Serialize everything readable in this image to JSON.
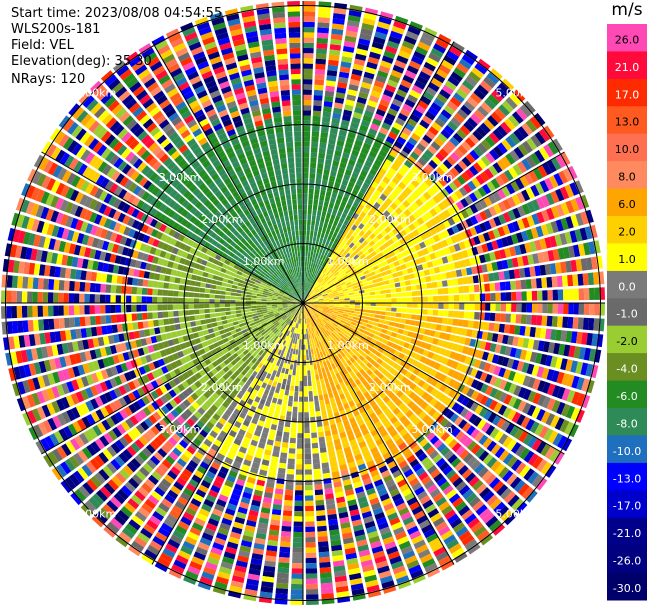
{
  "header": {
    "start_time": "Start time: 2023/08/08 04:54:55",
    "instrument": "WLS200s-181",
    "field": "Field: VEL",
    "elevation": "Elevation(deg): 35.30",
    "nrays": "NRays: 120"
  },
  "chart_data": {
    "type": "heatmap",
    "subtype": "polar-ppi",
    "field": "VEL",
    "units": "m/s",
    "n_rays": 120,
    "elevation_deg": 35.3,
    "range_rings_km": [
      1.0,
      2.0,
      3.0,
      5.0
    ],
    "ring_labels": [
      "1.00km",
      "2.00km",
      "3.00km",
      "5.00km"
    ],
    "colorbar": {
      "unit_label": "m/s",
      "ticks": [
        "26.0",
        "21.0",
        "17.0",
        "13.0",
        "10.0",
        "8.0",
        "6.0",
        "2.0",
        "1.0",
        "0.0",
        "-1.0",
        "-2.0",
        "-4.0",
        "-6.0",
        "-8.0",
        "-10.0",
        "-13.0",
        "-17.0",
        "-21.0",
        "-26.0",
        "-30.0"
      ],
      "colors": [
        "#ff49b4",
        "#ff0a3a",
        "#ff2b00",
        "#ff5a20",
        "#ff7050",
        "#ff8a60",
        "#ffa500",
        "#ffd000",
        "#ffff00",
        "#7a7a7a",
        "#6a6a6a",
        "#9acd32",
        "#6b8e23",
        "#228b22",
        "#2e8b57",
        "#1e6fbe",
        "#0000ff",
        "#0000cc",
        "#00008b",
        "#000080",
        "#00006a"
      ]
    },
    "regions": [
      {
        "azimuth_range_deg": [
          300,
          30
        ],
        "range_km": [
          0,
          3.2
        ],
        "velocity": -6.0
      },
      {
        "azimuth_range_deg": [
          30,
          95
        ],
        "range_km": [
          0,
          2.9
        ],
        "velocity": 2.0
      },
      {
        "azimuth_range_deg": [
          95,
          170
        ],
        "range_km": [
          0,
          3.0
        ],
        "velocity": 6.0
      },
      {
        "azimuth_range_deg": [
          170,
          215
        ],
        "range_km": [
          0,
          3.0
        ],
        "velocity": 1.0
      },
      {
        "azimuth_range_deg": [
          215,
          300
        ],
        "range_km": [
          0,
          2.6
        ],
        "velocity": -2.0
      }
    ],
    "far_field": "noise"
  }
}
